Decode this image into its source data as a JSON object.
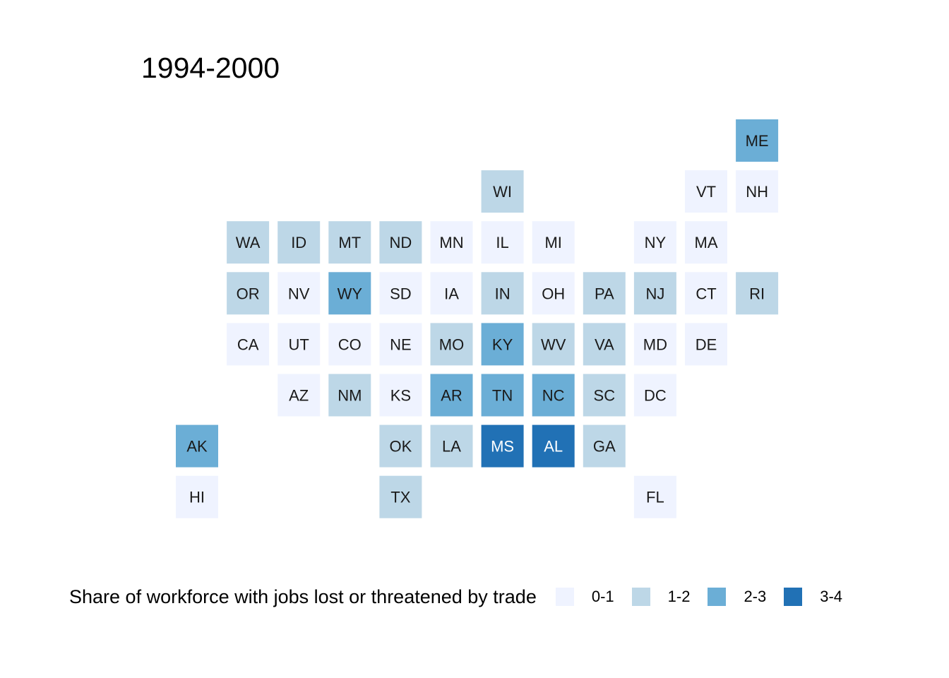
{
  "title": "1994-2000",
  "legend": {
    "title": "Share of workforce with jobs lost or threatened by trade",
    "items": [
      {
        "label": "0-1",
        "color": "#eff3ff"
      },
      {
        "label": "1-2",
        "color": "#bdd7e7"
      },
      {
        "label": "2-3",
        "color": "#6baed6"
      },
      {
        "label": "3-4",
        "color": "#2171b5"
      }
    ]
  },
  "chart_data": {
    "type": "tile-map",
    "title": "1994-2000",
    "legend_title": "Share of workforce with jobs lost or threatened by trade",
    "legend_position": "bottom",
    "categories": [
      "0-1",
      "1-2",
      "2-3",
      "3-4"
    ],
    "states": [
      {
        "state": "ME",
        "row": 0,
        "col": 11,
        "bin": "2-3"
      },
      {
        "state": "WI",
        "row": 1,
        "col": 6,
        "bin": "1-2"
      },
      {
        "state": "VT",
        "row": 1,
        "col": 10,
        "bin": "0-1"
      },
      {
        "state": "NH",
        "row": 1,
        "col": 11,
        "bin": "0-1"
      },
      {
        "state": "WA",
        "row": 2,
        "col": 1,
        "bin": "1-2"
      },
      {
        "state": "ID",
        "row": 2,
        "col": 2,
        "bin": "1-2"
      },
      {
        "state": "MT",
        "row": 2,
        "col": 3,
        "bin": "1-2"
      },
      {
        "state": "ND",
        "row": 2,
        "col": 4,
        "bin": "1-2"
      },
      {
        "state": "MN",
        "row": 2,
        "col": 5,
        "bin": "0-1"
      },
      {
        "state": "IL",
        "row": 2,
        "col": 6,
        "bin": "0-1"
      },
      {
        "state": "MI",
        "row": 2,
        "col": 7,
        "bin": "0-1"
      },
      {
        "state": "NY",
        "row": 2,
        "col": 9,
        "bin": "0-1"
      },
      {
        "state": "MA",
        "row": 2,
        "col": 10,
        "bin": "0-1"
      },
      {
        "state": "OR",
        "row": 3,
        "col": 1,
        "bin": "1-2"
      },
      {
        "state": "NV",
        "row": 3,
        "col": 2,
        "bin": "0-1"
      },
      {
        "state": "WY",
        "row": 3,
        "col": 3,
        "bin": "2-3"
      },
      {
        "state": "SD",
        "row": 3,
        "col": 4,
        "bin": "0-1"
      },
      {
        "state": "IA",
        "row": 3,
        "col": 5,
        "bin": "0-1"
      },
      {
        "state": "IN",
        "row": 3,
        "col": 6,
        "bin": "1-2"
      },
      {
        "state": "OH",
        "row": 3,
        "col": 7,
        "bin": "0-1"
      },
      {
        "state": "PA",
        "row": 3,
        "col": 8,
        "bin": "1-2"
      },
      {
        "state": "NJ",
        "row": 3,
        "col": 9,
        "bin": "1-2"
      },
      {
        "state": "CT",
        "row": 3,
        "col": 10,
        "bin": "0-1"
      },
      {
        "state": "RI",
        "row": 3,
        "col": 11,
        "bin": "1-2"
      },
      {
        "state": "CA",
        "row": 4,
        "col": 1,
        "bin": "0-1"
      },
      {
        "state": "UT",
        "row": 4,
        "col": 2,
        "bin": "0-1"
      },
      {
        "state": "CO",
        "row": 4,
        "col": 3,
        "bin": "0-1"
      },
      {
        "state": "NE",
        "row": 4,
        "col": 4,
        "bin": "0-1"
      },
      {
        "state": "MO",
        "row": 4,
        "col": 5,
        "bin": "1-2"
      },
      {
        "state": "KY",
        "row": 4,
        "col": 6,
        "bin": "2-3"
      },
      {
        "state": "WV",
        "row": 4,
        "col": 7,
        "bin": "1-2"
      },
      {
        "state": "VA",
        "row": 4,
        "col": 8,
        "bin": "1-2"
      },
      {
        "state": "MD",
        "row": 4,
        "col": 9,
        "bin": "0-1"
      },
      {
        "state": "DE",
        "row": 4,
        "col": 10,
        "bin": "0-1"
      },
      {
        "state": "AZ",
        "row": 5,
        "col": 2,
        "bin": "0-1"
      },
      {
        "state": "NM",
        "row": 5,
        "col": 3,
        "bin": "1-2"
      },
      {
        "state": "KS",
        "row": 5,
        "col": 4,
        "bin": "0-1"
      },
      {
        "state": "AR",
        "row": 5,
        "col": 5,
        "bin": "2-3"
      },
      {
        "state": "TN",
        "row": 5,
        "col": 6,
        "bin": "2-3"
      },
      {
        "state": "NC",
        "row": 5,
        "col": 7,
        "bin": "2-3"
      },
      {
        "state": "SC",
        "row": 5,
        "col": 8,
        "bin": "1-2"
      },
      {
        "state": "DC",
        "row": 5,
        "col": 9,
        "bin": "0-1"
      },
      {
        "state": "AK",
        "row": 6,
        "col": 0,
        "bin": "2-3"
      },
      {
        "state": "OK",
        "row": 6,
        "col": 4,
        "bin": "1-2"
      },
      {
        "state": "LA",
        "row": 6,
        "col": 5,
        "bin": "1-2"
      },
      {
        "state": "MS",
        "row": 6,
        "col": 6,
        "bin": "3-4"
      },
      {
        "state": "AL",
        "row": 6,
        "col": 7,
        "bin": "3-4"
      },
      {
        "state": "GA",
        "row": 6,
        "col": 8,
        "bin": "1-2"
      },
      {
        "state": "HI",
        "row": 7,
        "col": 0,
        "bin": "0-1"
      },
      {
        "state": "TX",
        "row": 7,
        "col": 4,
        "bin": "1-2"
      },
      {
        "state": "FL",
        "row": 7,
        "col": 9,
        "bin": "0-1"
      }
    ]
  }
}
